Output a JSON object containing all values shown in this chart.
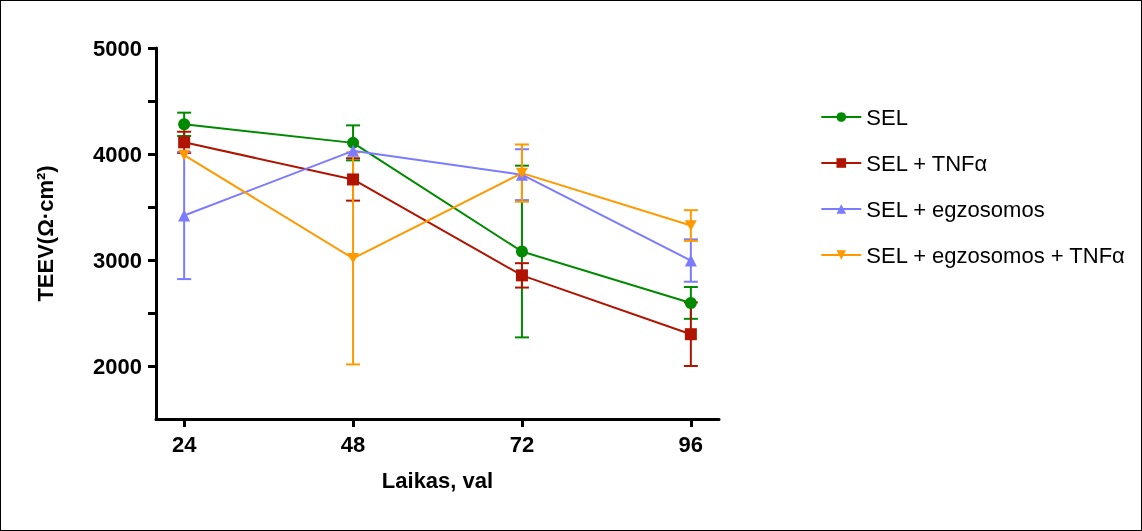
{
  "chart_data": {
    "type": "line",
    "xlabel": "Laikas, val",
    "ylabel": "TEEV(Ω·cm²)",
    "x": [
      24,
      48,
      72,
      96
    ],
    "xlim": [
      20,
      100
    ],
    "xticks": [
      24,
      48,
      72,
      96
    ],
    "ylim": [
      1500,
      5000
    ],
    "yticks": [
      {
        "value": 2000,
        "label": "2000"
      },
      {
        "value": 2500,
        "label": null
      },
      {
        "value": 3000,
        "label": "3000"
      },
      {
        "value": 3500,
        "label": null
      },
      {
        "value": 4000,
        "label": "4000"
      },
      {
        "value": 4500,
        "label": null
      },
      {
        "value": 5000,
        "label": "5000"
      }
    ],
    "grid": false,
    "legend": "right",
    "line_style": "solid",
    "series": [
      {
        "name": "SEL",
        "color": "#008a00",
        "marker": "circle",
        "values": [
          4280,
          4105,
          3080,
          2595
        ],
        "errors": [
          110,
          165,
          810,
          150
        ]
      },
      {
        "name": "SEL + TNFα",
        "color": "#b01400",
        "marker": "square",
        "values": [
          4110,
          3760,
          2855,
          2300
        ],
        "errors": [
          100,
          200,
          115,
          300
        ]
      },
      {
        "name": "SEL + egzosomos",
        "color": "#7b7bff",
        "marker": "triangle",
        "values": [
          3420,
          4030,
          3805,
          2995
        ],
        "errors": [
          600,
          null,
          240,
          200
        ]
      },
      {
        "name": "SEL + egzosomos + TNFα",
        "color": "#ff9900",
        "marker": "triangle-down",
        "values": [
          3990,
          3015,
          3820,
          3325
        ],
        "errors": [
          null,
          1000,
          270,
          145
        ]
      }
    ]
  }
}
